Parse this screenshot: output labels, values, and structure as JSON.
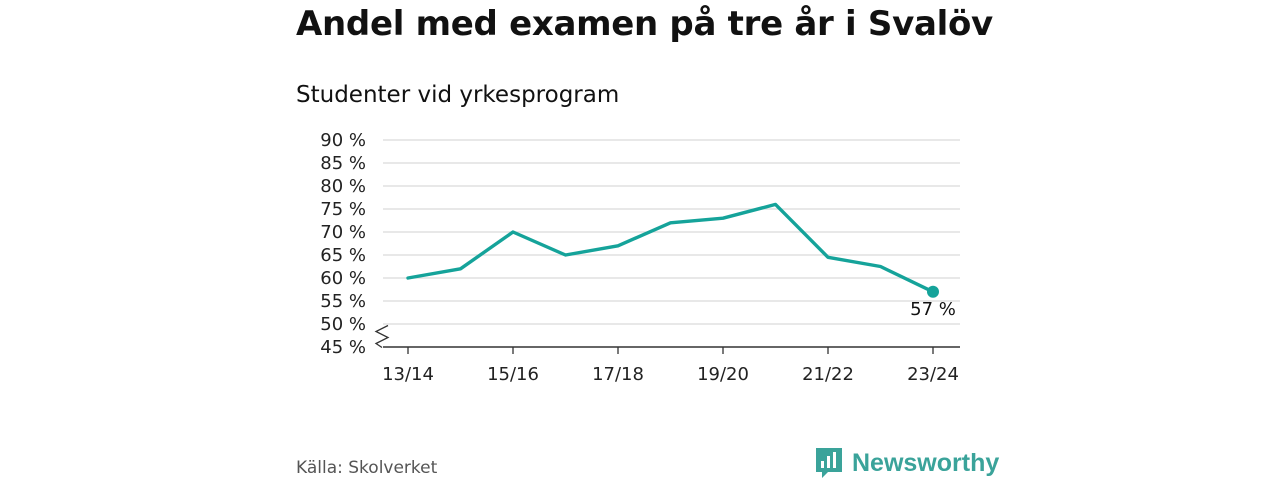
{
  "title": "Andel med examen på tre år i Svalöv",
  "subtitle": "Studenter vid yrkesprogram",
  "source": "Källa: Skolverket",
  "brand": {
    "name": "Newsworthy",
    "icon": "newsworthy-logo-icon",
    "color": "#3aa39a"
  },
  "colors": {
    "line": "#15a39a",
    "grid": "#d9d9d9",
    "axis": "#333333"
  },
  "chart_data": {
    "type": "line",
    "x": [
      "13/14",
      "14/15",
      "15/16",
      "16/17",
      "17/18",
      "18/19",
      "19/20",
      "20/21",
      "21/22",
      "22/23",
      "23/24"
    ],
    "x_tick_labels": [
      "13/14",
      "15/16",
      "17/18",
      "19/20",
      "21/22",
      "23/24"
    ],
    "values": [
      60,
      62,
      70,
      65,
      67,
      72,
      73,
      76,
      64.5,
      62.5,
      57
    ],
    "y_tick_labels": [
      "45 %",
      "50 %",
      "55 %",
      "60 %",
      "65 %",
      "70 %",
      "75 %",
      "80 %",
      "85 %",
      "90 %"
    ],
    "ylim": [
      45,
      90
    ],
    "y_axis_break": true,
    "grid": true,
    "last_value_label": "57 %"
  }
}
